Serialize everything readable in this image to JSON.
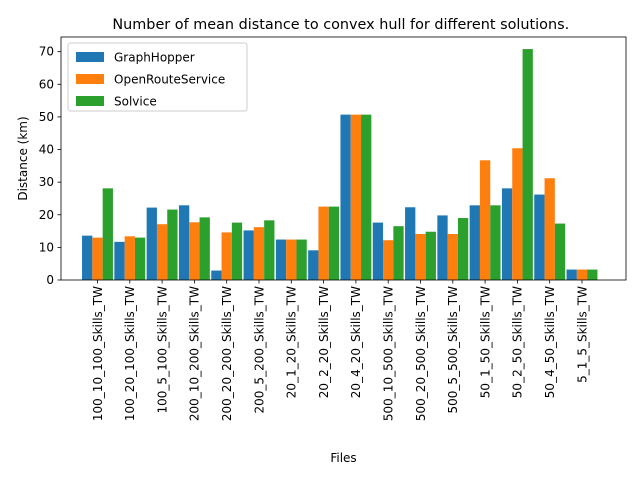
{
  "chart_data": {
    "type": "bar",
    "title": "Number of mean distance to convex hull for different solutions.",
    "xlabel": "Files",
    "ylabel": "Distance (km)",
    "ylim": [
      0,
      74.5
    ],
    "yticks": [
      0,
      10,
      20,
      30,
      40,
      50,
      60,
      70
    ],
    "grid": false,
    "legend_position": "top-left",
    "categories": [
      "100_10_100_Skills_TW",
      "100_20_100_Skills_TW",
      "100_5_100_Skills_TW",
      "200_10_200_Skills_TW",
      "200_20_200_Skills_TW",
      "200_5_200_Skills_TW",
      "20_1_20_Skills_TW",
      "20_2_20_Skills_TW",
      "20_4_20_Skills_TW",
      "500_10_500_Skills_TW",
      "500_20_500_Skills_TW",
      "500_5_500_Skills_TW",
      "50_1_50_Skills_TW",
      "50_2_50_Skills_TW",
      "50_4_50_Skills_TW",
      "5_1_5_Skills_TW"
    ],
    "series": [
      {
        "name": "GraphHopper",
        "color": "#1f77b4",
        "values": [
          13.6,
          11.7,
          22.2,
          22.9,
          2.9,
          15.2,
          12.4,
          9.1,
          50.7,
          17.6,
          22.3,
          19.8,
          22.9,
          28.1,
          26.2,
          3.2
        ]
      },
      {
        "name": "OpenRouteService",
        "color": "#ff7f0e",
        "values": [
          13.0,
          13.4,
          17.1,
          17.7,
          14.6,
          16.2,
          12.4,
          22.5,
          50.7,
          12.2,
          14.1,
          14.1,
          36.7,
          40.4,
          31.2,
          3.2
        ]
      },
      {
        "name": "Solvice",
        "color": "#2ca02c",
        "values": [
          28.1,
          13.0,
          21.6,
          19.2,
          17.6,
          18.3,
          12.4,
          22.5,
          50.7,
          16.5,
          14.8,
          19.0,
          22.9,
          70.8,
          17.3,
          3.2
        ]
      }
    ]
  }
}
